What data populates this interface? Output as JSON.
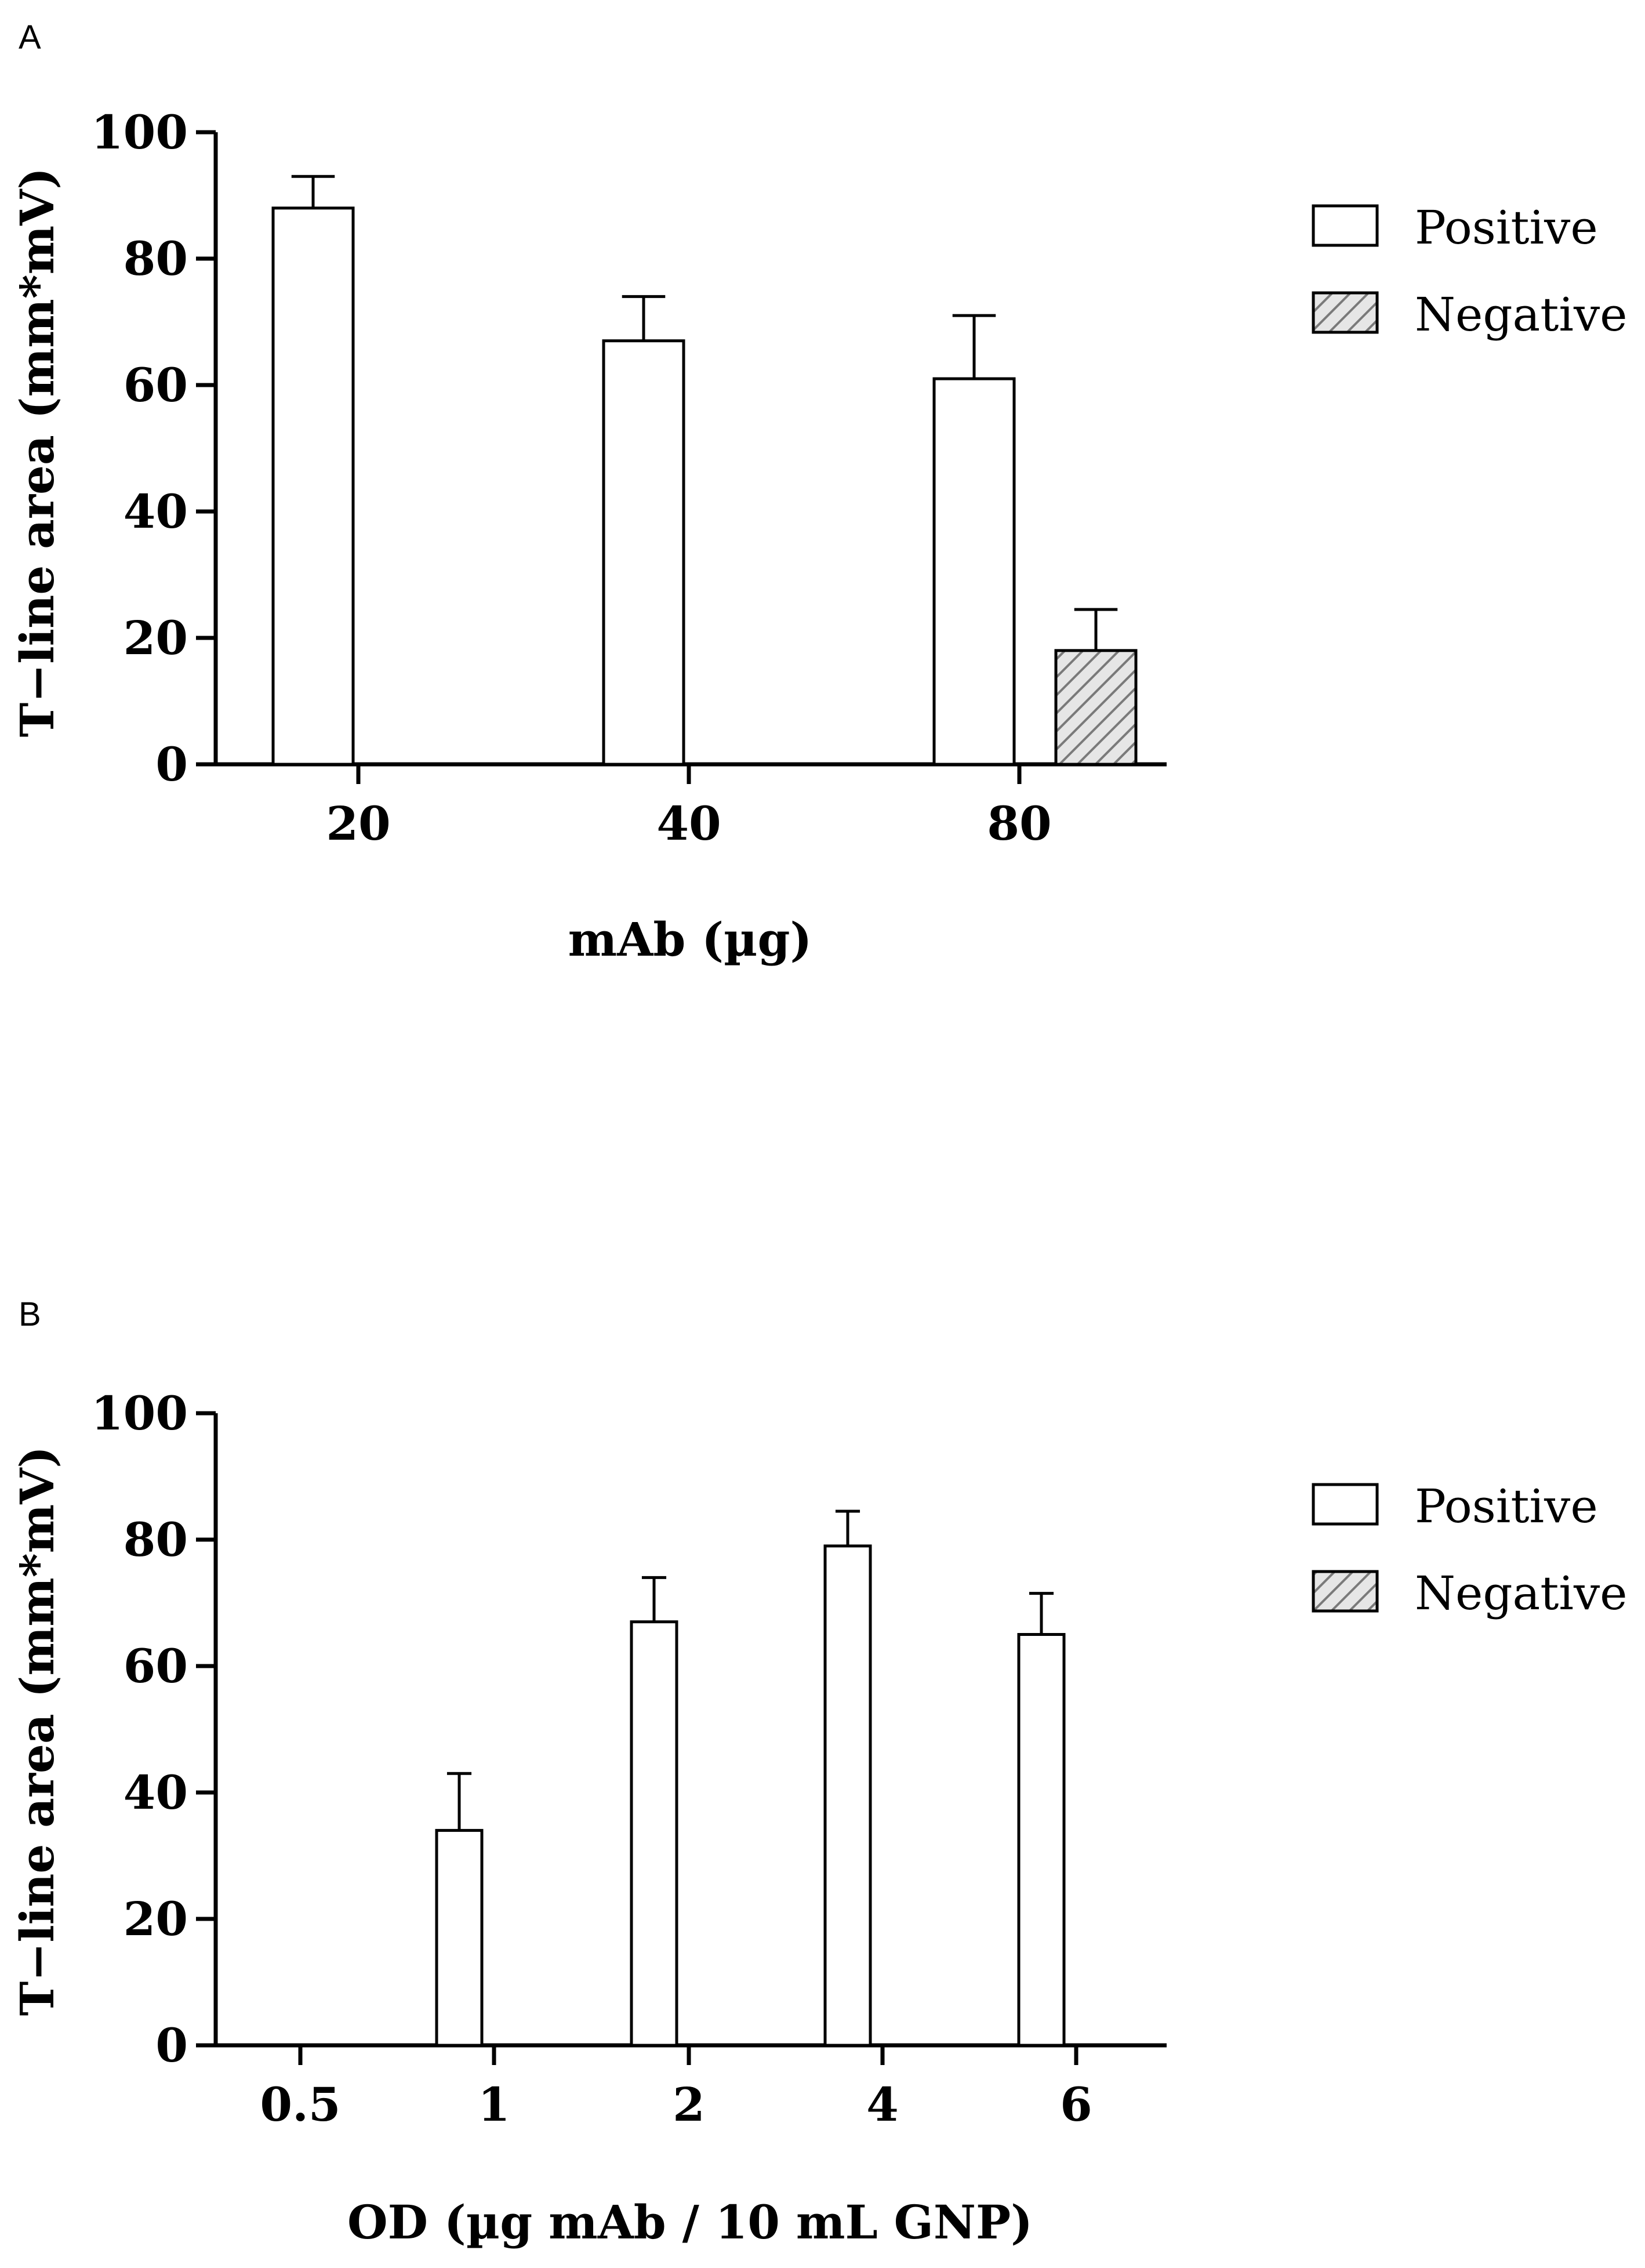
{
  "chart_data": [
    {
      "panel": "A",
      "type": "bar",
      "categories": [
        "20",
        "40",
        "80"
      ],
      "series": [
        {
          "name": "Positive",
          "values": [
            88,
            67,
            61
          ],
          "errors": [
            5,
            7,
            10
          ],
          "pattern": "solid"
        },
        {
          "name": "Negative",
          "values": [
            null,
            null,
            18
          ],
          "errors": [
            null,
            null,
            6.5
          ],
          "pattern": "hatched"
        }
      ],
      "xlabel": "mAb (µg)",
      "ylabel": "T−line area (mm*mV)",
      "ylim": [
        0,
        100
      ],
      "yticks": [
        "0",
        "20",
        "40",
        "60",
        "80",
        "100"
      ],
      "legend": {
        "position": "top-right",
        "entries": [
          "Positive",
          "Negative"
        ]
      }
    },
    {
      "panel": "B",
      "type": "bar",
      "categories": [
        "0.5",
        "1",
        "2",
        "4",
        "6"
      ],
      "series": [
        {
          "name": "Positive",
          "values": [
            null,
            34,
            67,
            79,
            65
          ],
          "errors": [
            null,
            9,
            7,
            5.5,
            6.5
          ],
          "pattern": "solid"
        },
        {
          "name": "Negative",
          "values": [
            null,
            null,
            null,
            null,
            null
          ],
          "errors": [
            null,
            null,
            null,
            null,
            null
          ],
          "pattern": "hatched"
        }
      ],
      "xlabel": "OD (µg mAb / 10 mL GNP)",
      "ylabel": "T−line area (mm*mV)",
      "ylim": [
        0,
        100
      ],
      "yticks": [
        "0",
        "20",
        "40",
        "60",
        "80",
        "100"
      ],
      "legend": {
        "position": "top-right",
        "entries": [
          "Positive",
          "Negative"
        ]
      }
    }
  ],
  "colors": {
    "positive_fill": "#ffffff",
    "negative_fill": "#d9d9d9",
    "stroke": "#000000"
  }
}
